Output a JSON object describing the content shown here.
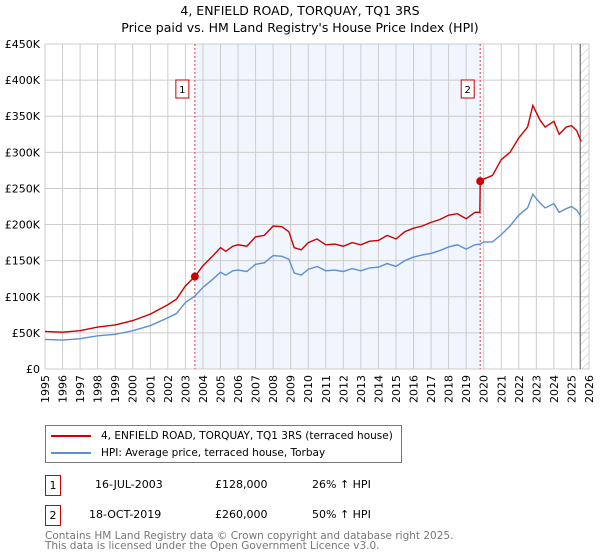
{
  "title": "4, ENFIELD ROAD, TORQUAY, TQ1 3RS",
  "subtitle": "Price paid vs. HM Land Registry's House Price Index (HPI)",
  "chart_data": {
    "type": "line",
    "title": "4, ENFIELD ROAD, TORQUAY, TQ1 3RS",
    "subtitle": "Price paid vs. HM Land Registry's House Price Index (HPI)",
    "xlim": [
      1995,
      2026
    ],
    "ylim": [
      0,
      450000
    ],
    "grid": true,
    "y_ticks": [
      {
        "v": 0,
        "label": "£0"
      },
      {
        "v": 50000,
        "label": "£50K"
      },
      {
        "v": 100000,
        "label": "£100K"
      },
      {
        "v": 150000,
        "label": "£150K"
      },
      {
        "v": 200000,
        "label": "£200K"
      },
      {
        "v": 250000,
        "label": "£250K"
      },
      {
        "v": 300000,
        "label": "£300K"
      },
      {
        "v": 350000,
        "label": "£350K"
      },
      {
        "v": 400000,
        "label": "£400K"
      },
      {
        "v": 450000,
        "label": "£450K"
      }
    ],
    "x_ticks": [
      "1995",
      "1996",
      "1997",
      "1998",
      "1999",
      "2000",
      "2001",
      "2002",
      "2003",
      "2004",
      "2005",
      "2006",
      "2007",
      "2008",
      "2009",
      "2010",
      "2011",
      "2012",
      "2013",
      "2014",
      "2015",
      "2016",
      "2017",
      "2018",
      "2019",
      "2020",
      "2021",
      "2022",
      "2023",
      "2024",
      "2025",
      "2026"
    ],
    "shaded_range": [
      2003.54,
      2019.8
    ],
    "hatched_from": 2025.5,
    "series": [
      {
        "name": "4, ENFIELD ROAD, TORQUAY, TQ1 3RS (terraced house)",
        "color": "#cc0000",
        "x": [
          1995,
          1996,
          1997,
          1998,
          1999,
          2000,
          2001,
          2002,
          2002.5,
          2003,
          2003.54,
          2004,
          2004.5,
          2005,
          2005.3,
          2005.7,
          2006,
          2006.5,
          2007,
          2007.5,
          2008,
          2008.5,
          2008.9,
          2009.2,
          2009.6,
          2010,
          2010.5,
          2011,
          2011.5,
          2012,
          2012.5,
          2013,
          2013.5,
          2014,
          2014.5,
          2015,
          2015.5,
          2016,
          2016.5,
          2017,
          2017.5,
          2018,
          2018.5,
          2019,
          2019.5,
          2019.78,
          2019.8,
          2020,
          2020.5,
          2021,
          2021.5,
          2022,
          2022.5,
          2022.8,
          2023.2,
          2023.5,
          2024,
          2024.3,
          2024.7,
          2025,
          2025.3,
          2025.55
        ],
        "y": [
          52000,
          51000,
          53000,
          58000,
          61000,
          67000,
          76000,
          89000,
          97000,
          115000,
          128000,
          143000,
          155000,
          168000,
          163000,
          170000,
          172000,
          170000,
          183000,
          185000,
          198000,
          197000,
          190000,
          168000,
          165000,
          175000,
          180000,
          172000,
          173000,
          170000,
          175000,
          172000,
          177000,
          178000,
          185000,
          180000,
          190000,
          195000,
          198000,
          203000,
          207000,
          213000,
          215000,
          208000,
          217000,
          217000,
          260000,
          263000,
          268000,
          290000,
          300000,
          320000,
          335000,
          365000,
          345000,
          335000,
          343000,
          325000,
          335000,
          337000,
          330000,
          315000
        ]
      },
      {
        "name": "HPI: Average price, terraced house, Torbay",
        "color": "#5b8fd4",
        "x": [
          1995,
          1996,
          1997,
          1998,
          1999,
          2000,
          2001,
          2002,
          2002.5,
          2003,
          2003.54,
          2004,
          2004.5,
          2005,
          2005.3,
          2005.7,
          2006,
          2006.5,
          2007,
          2007.5,
          2008,
          2008.5,
          2008.9,
          2009.2,
          2009.6,
          2010,
          2010.5,
          2011,
          2011.5,
          2012,
          2012.5,
          2013,
          2013.5,
          2014,
          2014.5,
          2015,
          2015.5,
          2016,
          2016.5,
          2017,
          2017.5,
          2018,
          2018.5,
          2019,
          2019.5,
          2019.8,
          2020,
          2020.5,
          2021,
          2021.5,
          2022,
          2022.5,
          2022.8,
          2023.2,
          2023.5,
          2024,
          2024.3,
          2024.7,
          2025,
          2025.3,
          2025.55
        ],
        "y": [
          41000,
          40000,
          42000,
          46000,
          48000,
          53000,
          60000,
          71000,
          77000,
          92000,
          101000,
          113000,
          123000,
          134000,
          130000,
          136000,
          137000,
          135000,
          145000,
          147000,
          157000,
          156000,
          152000,
          133000,
          130000,
          138000,
          142000,
          136000,
          137000,
          135000,
          139000,
          136000,
          140000,
          141000,
          146000,
          142000,
          150000,
          155000,
          158000,
          160000,
          164000,
          169000,
          172000,
          166000,
          172000,
          173000,
          176000,
          176000,
          186000,
          198000,
          213000,
          223000,
          242000,
          230000,
          223000,
          229000,
          217000,
          222000,
          225000,
          220000,
          211000
        ]
      }
    ],
    "markers": [
      {
        "id": "1",
        "x": 2003.54,
        "y": 128000
      },
      {
        "id": "2",
        "x": 2019.8,
        "y": 260000
      }
    ]
  },
  "legend": {
    "items": [
      {
        "label": "4, ENFIELD ROAD, TORQUAY, TQ1 3RS (terraced house)",
        "color": "#cc0000"
      },
      {
        "label": "HPI: Average price, terraced house, Torbay",
        "color": "#5b8fd4"
      }
    ]
  },
  "transactions": [
    {
      "id": "1",
      "date": "16-JUL-2003",
      "price": "£128,000",
      "hpi": "26% ↑ HPI"
    },
    {
      "id": "2",
      "date": "18-OCT-2019",
      "price": "£260,000",
      "hpi": "50% ↑ HPI"
    }
  ],
  "footer": {
    "line1": "Contains HM Land Registry data © Crown copyright and database right 2025.",
    "line2": "This data is licensed under the Open Government Licence v3.0."
  }
}
